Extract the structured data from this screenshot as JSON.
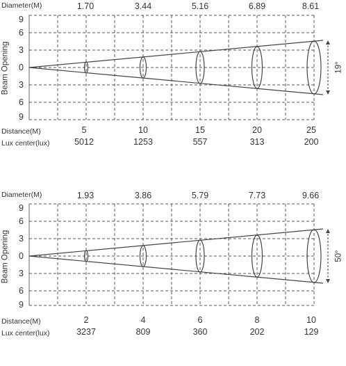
{
  "panels": [
    {
      "diameter_label": "Diameter(M)",
      "diameters": [
        "1.70",
        "3.44",
        "5.16",
        "6.89",
        "8.61"
      ],
      "y_axis_label": "Beam Opening",
      "y_ticks": [
        "9",
        "6",
        "3",
        "0",
        "3",
        "6",
        "9"
      ],
      "angle_label": "19°",
      "distance_label": "Distance(M)",
      "distances": [
        "5",
        "10",
        "15",
        "20",
        "25"
      ],
      "lux_label": "Lux center(lux)",
      "lux_values": [
        "5012",
        "1253",
        "557",
        "313",
        "200"
      ]
    },
    {
      "diameter_label": "Diameter(M)",
      "diameters": [
        "1.93",
        "3.86",
        "5.79",
        "7.73",
        "9.66"
      ],
      "y_axis_label": "Beam Opening",
      "y_ticks": [
        "9",
        "6",
        "3",
        "0",
        "3",
        "6",
        "9"
      ],
      "angle_label": "50°",
      "distance_label": "Distance(M)",
      "distances": [
        "2",
        "4",
        "6",
        "8",
        "10"
      ],
      "lux_label": "Lux center(lux)",
      "lux_values": [
        "3237",
        "809",
        "360",
        "202",
        "129"
      ]
    }
  ]
}
